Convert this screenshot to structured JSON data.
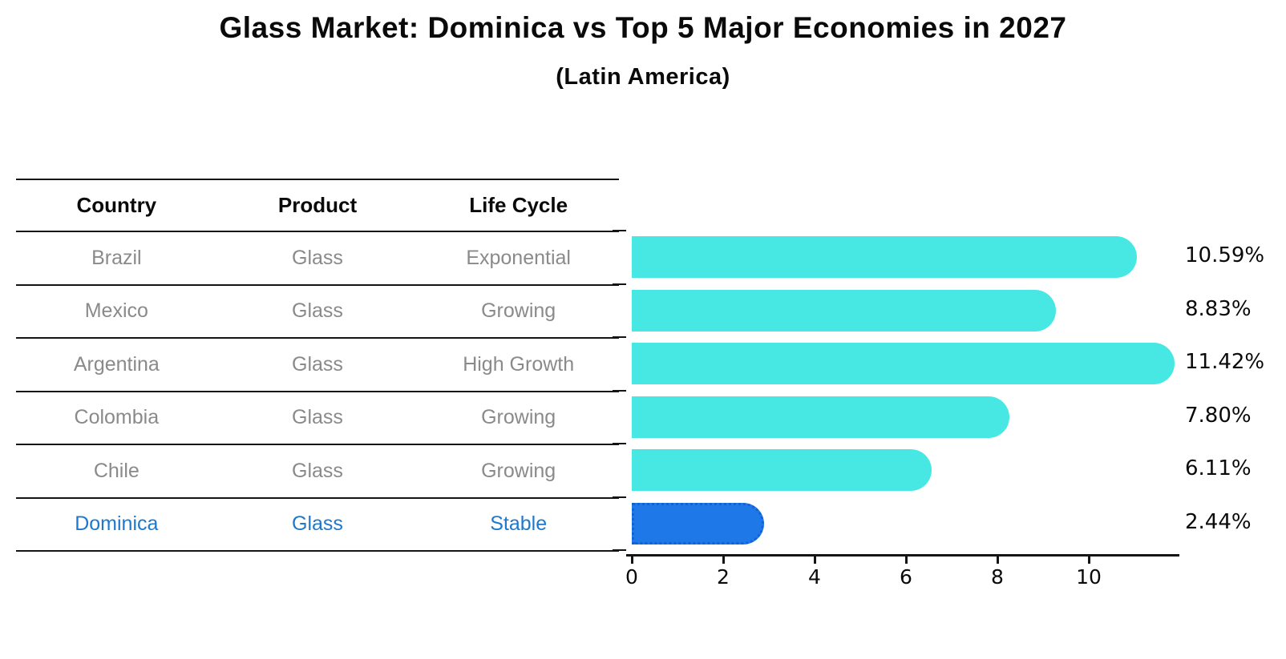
{
  "title": "Glass Market: Dominica vs Top 5 Major Economies in 2027",
  "subtitle": "(Latin America)",
  "table": {
    "headers": [
      "Country",
      "Product",
      "Life Cycle"
    ],
    "rows": [
      {
        "country": "Brazil",
        "product": "Glass",
        "life_cycle": "Exponential",
        "highlight": false
      },
      {
        "country": "Mexico",
        "product": "Glass",
        "life_cycle": "Growing",
        "highlight": false
      },
      {
        "country": "Argentina",
        "product": "Glass",
        "life_cycle": "High Growth",
        "highlight": false
      },
      {
        "country": "Colombia",
        "product": "Glass",
        "life_cycle": "Growing",
        "highlight": false
      },
      {
        "country": "Chile",
        "product": "Glass",
        "life_cycle": "Growing",
        "highlight": false
      },
      {
        "country": "Dominica",
        "product": "Glass",
        "life_cycle": "Stable",
        "highlight": true
      }
    ]
  },
  "chart_data": {
    "type": "bar",
    "orientation": "horizontal",
    "categories": [
      "Brazil",
      "Mexico",
      "Argentina",
      "Colombia",
      "Chile",
      "Dominica"
    ],
    "values": [
      10.59,
      8.83,
      11.42,
      7.8,
      6.11,
      2.44
    ],
    "value_labels": [
      "10.59%",
      "8.83%",
      "11.42%",
      "7.80%",
      "6.11%",
      "2.44%"
    ],
    "highlight_category": "Dominica",
    "x_ticks": [
      0,
      2,
      4,
      6,
      8,
      10
    ],
    "xlim": [
      0,
      12
    ],
    "grid": false,
    "legend": "none",
    "title": "Glass Market: Dominica vs Top 5 Major Economies in 2027",
    "subtitle": "(Latin America)",
    "xlabel": "",
    "ylabel": ""
  },
  "colors": {
    "bar_default": "#47e8e3",
    "bar_highlight": "#1e78e8",
    "bar_highlight_border": "#1361d6",
    "row_text": "#8a8a8a",
    "highlight_text": "#1e78cc",
    "axis": "#141414",
    "title_text": "#0a0a0a"
  }
}
